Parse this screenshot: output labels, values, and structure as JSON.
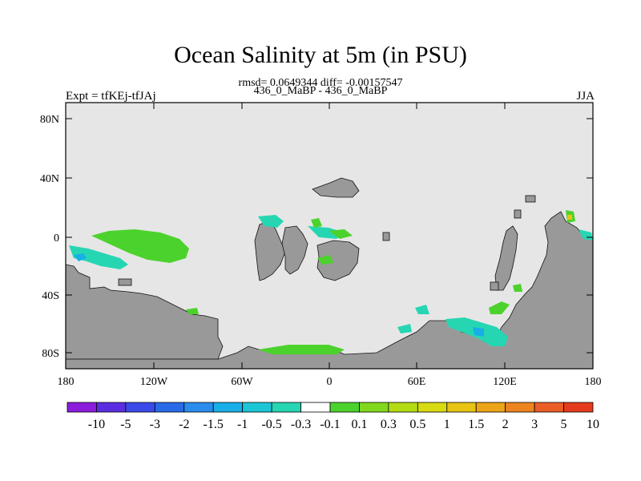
{
  "title": "Ocean Salinity at 5m (in PSU)",
  "stats_line": "rmsd= 0.0649344 diff= -0.00157547",
  "run_line": "436_0_MaBP - 436_0_MaBP",
  "left_label": "Expt = tfKEj-tfJAj",
  "right_label": "JJA",
  "map": {
    "lat_ticks": [
      "80N",
      "40N",
      "0",
      "40S",
      "80S"
    ],
    "lon_ticks": [
      "180",
      "120W",
      "60W",
      "0",
      "60E",
      "120E",
      "180"
    ],
    "ocean_color": "#e6e6e6",
    "land_color": "#999999"
  },
  "colorbar": {
    "colors": [
      "#8c1cdc",
      "#5a2ee0",
      "#3a4ae8",
      "#2a6ae8",
      "#2a8cec",
      "#18aee8",
      "#1cc6d6",
      "#26d6b2",
      "#ffffff",
      "#4cd22c",
      "#82d81e",
      "#b4dc14",
      "#d8da12",
      "#e8c414",
      "#eca418",
      "#ec8420",
      "#ea5e26",
      "#e43c1c"
    ],
    "labels": [
      "-10",
      "-5",
      "-3",
      "-2",
      "-1.5",
      "-1",
      "-0.5",
      "-0.3",
      "-0.1",
      "0.1",
      "0.3",
      "0.5",
      "1",
      "1.5",
      "2",
      "3",
      "5",
      "10"
    ]
  }
}
